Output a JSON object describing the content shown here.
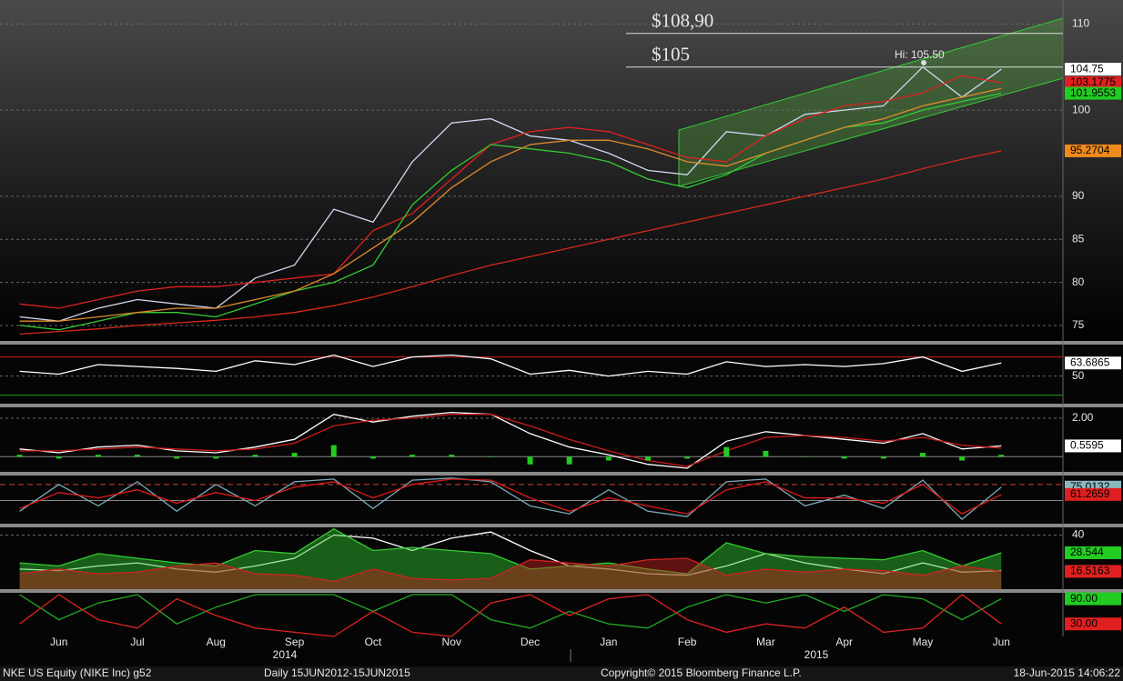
{
  "chart_data": [
    {
      "type": "line",
      "panel": "price",
      "categories": [
        null,
        "Jun",
        null,
        "Jul",
        null,
        "Aug",
        null,
        "Sep",
        null,
        "Oct",
        null,
        "Nov",
        null,
        "Dec",
        null,
        "Jan",
        null,
        "Feb",
        null,
        "Mar",
        null,
        "Apr",
        null,
        "May",
        null,
        "Jun",
        null
      ],
      "years": [
        "2014",
        "2015"
      ],
      "ylim": [
        73.2,
        111.2
      ],
      "yticks": [
        75,
        80,
        85,
        90,
        100,
        110
      ],
      "grid": true,
      "series": [
        {
          "color": "#d0d8f0",
          "label_box": true,
          "label_color": "#ffffff",
          "values": [
            76,
            75.5,
            77,
            78,
            77.5,
            77,
            80.5,
            82,
            88.5,
            87,
            94,
            98.5,
            99,
            97,
            96.5,
            95,
            93,
            92.5,
            97.5,
            97,
            99.5,
            100,
            100.5,
            105,
            101.5,
            104.75,
            null
          ]
        },
        {
          "color": "#e02020",
          "label_box": true,
          "label_color": "#e02020",
          "values": [
            77.5,
            77,
            78,
            79,
            79.5,
            79.5,
            80,
            80.5,
            81,
            86,
            88,
            92,
            96,
            97.5,
            98,
            97.5,
            96,
            94.5,
            94,
            97,
            99,
            100.5,
            101,
            102,
            104,
            103.1775,
            null
          ]
        },
        {
          "color": "#33cc33",
          "label_box": true,
          "label_color": "#22cc22",
          "values": [
            75,
            74.5,
            75.5,
            76.5,
            76.5,
            76,
            77.5,
            79,
            80,
            82,
            89,
            93,
            96,
            95.5,
            95,
            94,
            92,
            91,
            92.5,
            95,
            96.5,
            98,
            98.5,
            100,
            101,
            101.9553,
            null
          ]
        },
        {
          "color": "#e08a2a",
          "label_box": false,
          "values": [
            75.5,
            75.5,
            76,
            76.5,
            77,
            77,
            78,
            79,
            81,
            84,
            87,
            91,
            94,
            96,
            96.5,
            96.5,
            95.5,
            94,
            93.5,
            95,
            96.5,
            98,
            99,
            100.5,
            101.5,
            102.5,
            null
          ]
        },
        {
          "color": "#d42a1a",
          "label_box": true,
          "label_color": "#f08a1a",
          "values": [
            74,
            74.3,
            74.6,
            75,
            75.3,
            75.6,
            76,
            76.5,
            77.3,
            78.3,
            79.5,
            80.8,
            82,
            83,
            84,
            85,
            86,
            87,
            88,
            89,
            90,
            91,
            92,
            93.2,
            94.3,
            95.2704,
            null
          ]
        }
      ],
      "hlines": [
        {
          "value": 108.9,
          "label": "$108,90"
        },
        {
          "value": 105,
          "label": "$105"
        }
      ],
      "high": {
        "value": 105.5,
        "label": "Hi: 105.50"
      }
    },
    {
      "type": "line",
      "panel": "rsi",
      "ylim": [
        22,
        82
      ],
      "yticks": [
        50
      ],
      "levels": [
        {
          "value": 70,
          "color": "#d02020"
        },
        {
          "value": 30,
          "color": "#20a020"
        }
      ],
      "series": [
        {
          "color": "#ffffff",
          "label_box": true,
          "label_color": "#ffffff",
          "values": [
            55,
            52,
            62,
            60,
            58,
            55,
            66,
            62,
            72,
            60,
            70,
            72,
            68,
            52,
            56,
            50,
            55,
            52,
            65,
            60,
            62,
            60,
            63,
            70,
            55,
            63.6865,
            null
          ]
        }
      ]
    },
    {
      "type": "line",
      "panel": "macd",
      "ylim": [
        -0.79,
        2.47
      ],
      "yticks": [
        {
          "value": 2,
          "label": "2.00"
        }
      ],
      "levels": [
        {
          "value": 0,
          "color": "#888888"
        }
      ],
      "series": [
        {
          "color": "#ffffff",
          "label_box": true,
          "label_color": "#ffffff",
          "values": [
            0.4,
            0.2,
            0.5,
            0.6,
            0.3,
            0.2,
            0.5,
            0.9,
            2.2,
            1.8,
            2.1,
            2.3,
            2.2,
            1.2,
            0.5,
            0.1,
            -0.4,
            -0.6,
            0.8,
            1.3,
            1.1,
            0.9,
            0.7,
            1.2,
            0.4,
            0.5595,
            null
          ]
        },
        {
          "color": "#cc1a1a",
          "label_box": false,
          "values": [
            0.3,
            0.3,
            0.4,
            0.5,
            0.4,
            0.3,
            0.4,
            0.7,
            1.6,
            1.9,
            2.0,
            2.2,
            2.2,
            1.6,
            0.9,
            0.3,
            -0.2,
            -0.5,
            0.3,
            1.0,
            1.1,
            1.0,
            0.8,
            1.0,
            0.6,
            0.45,
            null
          ]
        },
        {
          "color": "#22cc22",
          "style": "bar",
          "label_box": false,
          "values": [
            0.1,
            -0.1,
            0.1,
            0.1,
            -0.1,
            -0.1,
            0.1,
            0.2,
            0.6,
            -0.1,
            0.1,
            0.1,
            0,
            -0.4,
            -0.4,
            -0.2,
            -0.2,
            -0.1,
            0.5,
            0.3,
            0,
            -0.1,
            -0.1,
            0.2,
            -0.2,
            0.1,
            null
          ]
        }
      ]
    },
    {
      "type": "line",
      "panel": "stochastic",
      "ylim": [
        5,
        95
      ],
      "yticks": [],
      "levels": [
        {
          "value": 80,
          "color": "#d04040",
          "dash": true
        },
        {
          "value": 50,
          "color": "#888888"
        }
      ],
      "series": [
        {
          "color": "#7aaab8",
          "label_box": true,
          "label_color": "#8ab8c0",
          "values": [
            30,
            80,
            40,
            85,
            30,
            80,
            40,
            85,
            90,
            35,
            88,
            92,
            85,
            40,
            25,
            70,
            30,
            20,
            85,
            90,
            40,
            60,
            35,
            88,
            15,
            75.0132,
            null
          ]
        },
        {
          "color": "#e01a1a",
          "label_box": true,
          "label_color": "#e02020",
          "values": [
            35,
            65,
            55,
            70,
            45,
            65,
            50,
            75,
            85,
            55,
            80,
            90,
            88,
            55,
            30,
            55,
            40,
            25,
            70,
            85,
            55,
            55,
            45,
            80,
            25,
            61.2659,
            null
          ]
        }
      ]
    },
    {
      "type": "line",
      "panel": "dmi",
      "ylim": [
        5,
        45
      ],
      "yticks": [
        40
      ],
      "series": [
        {
          "color": "#ffffff",
          "label_box": false,
          "values": [
            18,
            17,
            20,
            22,
            18,
            16,
            20,
            25,
            40,
            38,
            30,
            38,
            42,
            30,
            20,
            18,
            15,
            14,
            20,
            28,
            22,
            18,
            15,
            22,
            16,
            17,
            null
          ]
        },
        {
          "color": "#33cc33",
          "fill": true,
          "label_box": true,
          "label_color": "#22cc22",
          "values": [
            22,
            20,
            28,
            25,
            22,
            20,
            30,
            28,
            44,
            30,
            32,
            30,
            28,
            18,
            20,
            22,
            18,
            15,
            35,
            28,
            26,
            25,
            24,
            30,
            20,
            28.544,
            null
          ]
        },
        {
          "color": "#cc2222",
          "fill": true,
          "label_box": true,
          "label_color": "#e02020",
          "values": [
            15,
            18,
            15,
            16,
            20,
            22,
            15,
            14,
            10,
            18,
            12,
            11,
            12,
            24,
            22,
            20,
            24,
            25,
            14,
            18,
            16,
            18,
            17,
            14,
            20,
            16.5163,
            null
          ]
        }
      ]
    },
    {
      "type": "line",
      "panel": "aroon",
      "ylim": [
        0,
        100
      ],
      "yticks": [],
      "series": [
        {
          "color": "#22aa22",
          "label_box": true,
          "label_color": "#22cc22",
          "values": [
            100,
            40,
            80,
            100,
            30,
            70,
            100,
            100,
            100,
            60,
            100,
            100,
            40,
            20,
            60,
            30,
            20,
            70,
            100,
            80,
            100,
            60,
            100,
            90,
            40,
            90,
            null
          ],
          "value_labels": [
            null,
            null,
            null,
            null,
            null,
            null,
            null,
            null,
            null,
            null,
            null,
            null,
            null,
            null,
            null,
            null,
            null,
            null,
            null,
            null,
            null,
            null,
            null,
            null,
            null,
            "90.00",
            null
          ]
        },
        {
          "color": "#dd2222",
          "label_box": true,
          "label_color": "#e02020",
          "values": [
            30,
            100,
            40,
            20,
            90,
            50,
            20,
            10,
            0,
            60,
            10,
            0,
            80,
            100,
            50,
            90,
            100,
            40,
            10,
            30,
            20,
            70,
            10,
            20,
            100,
            30,
            null
          ],
          "value_labels": [
            null,
            null,
            null,
            null,
            null,
            null,
            null,
            null,
            null,
            null,
            null,
            null,
            null,
            null,
            null,
            null,
            null,
            null,
            null,
            null,
            null,
            null,
            null,
            null,
            null,
            "30.00",
            null
          ]
        }
      ]
    }
  ],
  "footer": {
    "security": "NKE US Equity (NIKE Inc) g52",
    "range": "Daily 15JUN2012-15JUN2015",
    "copyright": "Copyright© 2015 Bloomberg Finance L.P.",
    "timestamp": "18-Jun-2015 14:06:22"
  }
}
